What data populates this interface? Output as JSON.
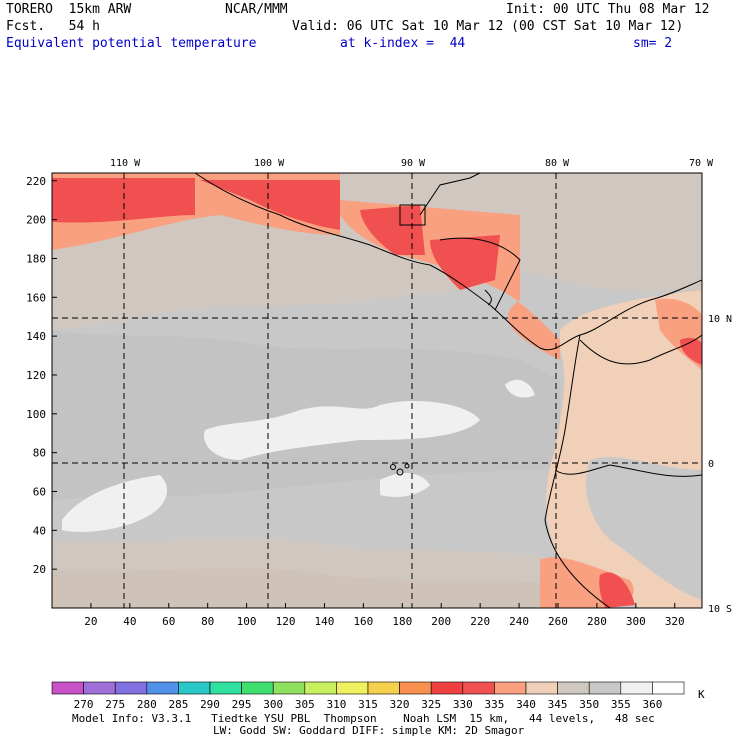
{
  "header": {
    "model": "TORERO  15km ARW",
    "center": "NCAR/MMM",
    "init": "Init: 00 UTC Thu 08 Mar 12",
    "fcst": "Fcst.   54 h",
    "valid": "Valid: 06 UTC Sat 10 Mar 12 (00 CST Sat 10 Mar 12)",
    "field": "Equivalent potential temperature",
    "level": "at k-index =  44",
    "smooth": "sm= 2"
  },
  "map": {
    "lon_labels": [
      "110 W",
      "100 W",
      "90 W",
      "80 W",
      "70 W"
    ],
    "lat_labels": [
      "10 N",
      "0",
      "10 S"
    ],
    "x_ticks": [
      "20",
      "40",
      "60",
      "80",
      "100",
      "120",
      "140",
      "160",
      "180",
      "200",
      "220",
      "240",
      "260",
      "280",
      "300",
      "320"
    ],
    "y_ticks": [
      "20",
      "40",
      "60",
      "80",
      "100",
      "120",
      "140",
      "160",
      "180",
      "200",
      "220"
    ]
  },
  "legend": {
    "values": [
      "270",
      "275",
      "280",
      "285",
      "290",
      "295",
      "300",
      "305",
      "310",
      "315",
      "320",
      "325",
      "330",
      "335",
      "340",
      "345",
      "350",
      "355",
      "360"
    ],
    "unit": "K",
    "colors": [
      "#c850c8",
      "#a070d8",
      "#8070e0",
      "#5090e8",
      "#28c8c8",
      "#30e0a0",
      "#40e070",
      "#90e060",
      "#c8f060",
      "#f0f060",
      "#f8d050",
      "#f89050",
      "#f04040",
      "#f05050",
      "#f8a080",
      "#f0d0b8",
      "#d0c8c0",
      "#c8c8c8",
      "#f0f0f0",
      "#ffffff"
    ]
  },
  "footer": {
    "line1": "Model Info: V3.3.1   Tiedtke YSU PBL  Thompson    Noah LSM  15 km,   44 levels,   48 sec",
    "line2": "LW: Godd SW: Goddard DIFF: simple KM: 2D Smagor"
  }
}
